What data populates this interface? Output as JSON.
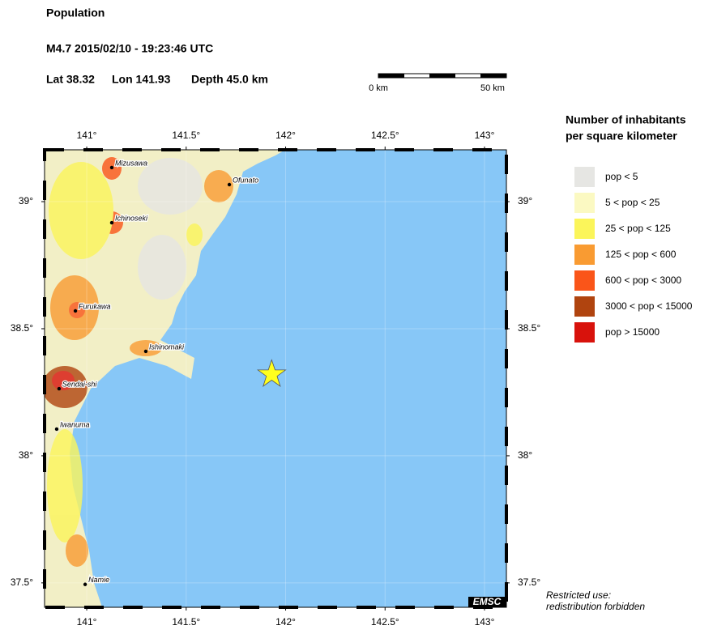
{
  "header": {
    "title": "Population",
    "event": "M4.7  2015/02/10 - 19:23:46 UTC",
    "lat_label": "Lat 38.32",
    "lon_label": "Lon 141.93",
    "depth_label": "Depth  45.0 km"
  },
  "scale_bar": {
    "start_label": "0 km",
    "end_label": "50 km"
  },
  "map": {
    "xlim": [
      140.788,
      143.11
    ],
    "ylim": [
      37.404,
      39.204
    ],
    "xticks": [
      {
        "value": 141,
        "label": "141°"
      },
      {
        "value": 141.5,
        "label": "141.5°"
      },
      {
        "value": 142,
        "label": "142°"
      },
      {
        "value": 142.5,
        "label": "142.5°"
      },
      {
        "value": 143,
        "label": "143°"
      }
    ],
    "yticks": [
      {
        "value": 37.5,
        "label": "37.5°"
      },
      {
        "value": 38,
        "label": "38°"
      },
      {
        "value": 38.5,
        "label": "38.5°"
      },
      {
        "value": 39,
        "label": "39°"
      }
    ],
    "cities": [
      {
        "name": "Mizusawa",
        "lon": 141.126,
        "lat": 39.134
      },
      {
        "name": "Ichinoseki",
        "lon": 141.126,
        "lat": 38.917
      },
      {
        "name": "Ofunato",
        "lon": 141.717,
        "lat": 39.067
      },
      {
        "name": "Furukawa",
        "lon": 140.943,
        "lat": 38.57
      },
      {
        "name": "Ishinomaki",
        "lon": 141.297,
        "lat": 38.411
      },
      {
        "name": "Sendai-shi",
        "lon": 140.861,
        "lat": 38.264
      },
      {
        "name": "Iwanuma",
        "lon": 140.849,
        "lat": 38.105
      },
      {
        "name": "Namie",
        "lon": 140.992,
        "lat": 37.494
      }
    ],
    "epicenter": {
      "lon": 141.93,
      "lat": 38.32,
      "color": "#ffff1e"
    },
    "credit": "EMSC"
  },
  "legend": {
    "title": [
      "Number of inhabitants",
      "per square kilometer"
    ],
    "items": [
      {
        "label": "pop < 5",
        "color": "#e6e6e3"
      },
      {
        "label": "5 < pop < 25",
        "color": "#fbf9c2"
      },
      {
        "label": "25 < pop < 125",
        "color": "#fbf55a"
      },
      {
        "label": "125 < pop < 600",
        "color": "#f99b32"
      },
      {
        "label": "600 < pop < 3000",
        "color": "#fa5519"
      },
      {
        "label": "3000 < pop < 15000",
        "color": "#b0440f"
      },
      {
        "label": "pop > 15000",
        "color": "#d8120c"
      }
    ]
  },
  "note": [
    "Restricted use:",
    "redistribution forbidden"
  ]
}
